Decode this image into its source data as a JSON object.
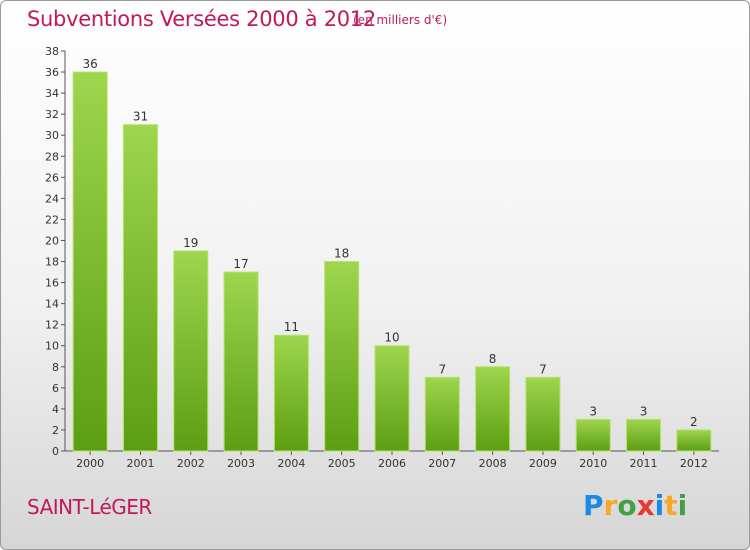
{
  "header": {
    "title": "Subventions Versées 2000 à 2012",
    "unit_note": "(en milliers d'€)"
  },
  "footer": {
    "town": "SAINT-LéGER",
    "logo_letters": [
      {
        "char": "P",
        "color": "#1e88e5"
      },
      {
        "char": "r",
        "color": "#f9a825"
      },
      {
        "char": "o",
        "color": "#43a047"
      },
      {
        "char": "x",
        "color": "#e53935"
      },
      {
        "char": "i",
        "color": "#1e88e5"
      },
      {
        "char": "t",
        "color": "#f9a825"
      },
      {
        "char": "i",
        "color": "#43a047"
      }
    ]
  },
  "colors": {
    "title": "#c2185b",
    "bar_top": "#9ed64d",
    "bar_bottom": "#5c9e12",
    "bar_edge": "#b5e36a"
  },
  "chart_data": {
    "type": "bar",
    "title": "Subventions Versées 2000 à 2012",
    "subtitle": "(en milliers d'€)",
    "categories": [
      "2000",
      "2001",
      "2002",
      "2003",
      "2004",
      "2005",
      "2006",
      "2007",
      "2008",
      "2009",
      "2010",
      "2011",
      "2012"
    ],
    "values": [
      36,
      31,
      19,
      17,
      11,
      18,
      10,
      7,
      8,
      7,
      3,
      3,
      2
    ],
    "ylim": [
      0,
      38
    ],
    "yticks": [
      "0",
      "2",
      "4",
      "6",
      "8",
      "10",
      "12",
      "14",
      "16",
      "18",
      "20",
      "22",
      "24",
      "26",
      "28",
      "30",
      "32",
      "34",
      "36",
      "38"
    ],
    "grid": false,
    "legend": "none"
  }
}
